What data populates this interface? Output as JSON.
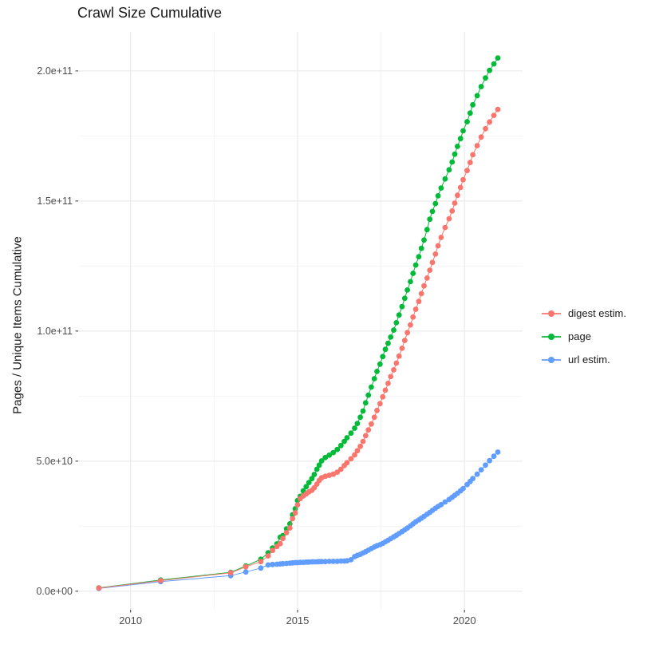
{
  "title": "Crawl Size Cumulative",
  "ylabel": "Pages / Unique Items Cumulative",
  "theme": {
    "background": "#FFFFFF",
    "grid_major": "#EBEBEB",
    "grid_minor": "#F4F4F4",
    "tick": "#333333",
    "tick_label": "#4D4D4D",
    "text": "#1A1A1A"
  },
  "chart_data": {
    "type": "scatter",
    "title": "Crawl Size Cumulative",
    "xlabel": "",
    "ylabel": "Pages / Unique Items Cumulative",
    "grid": true,
    "legend_position": "right",
    "xlim": [
      2008.43,
      2021.74
    ],
    "ylim_e9": [
      -7.1,
      215.0
    ],
    "unit_note": "values_e9 are in units of 1e9 (y axis shows scientific notation)",
    "x_axis": {
      "major_ticks": [
        {
          "value": 2010,
          "label": "2010"
        },
        {
          "value": 2015,
          "label": "2015"
        },
        {
          "value": 2020,
          "label": "2020"
        }
      ],
      "minor_gridlines": [
        2012.5,
        2017.5
      ]
    },
    "y_axis": {
      "major_ticks": [
        {
          "value_e9": 0,
          "label": "0.0e+00"
        },
        {
          "value_e9": 50,
          "label": "5.0e+10"
        },
        {
          "value_e9": 100,
          "label": "1.0e+11"
        },
        {
          "value_e9": 150,
          "label": "1.5e+11"
        },
        {
          "value_e9": 200,
          "label": "2.0e+11"
        }
      ],
      "minor_gridlines_e9": [
        25,
        75,
        125,
        175
      ]
    },
    "x_years": [
      2009.05,
      2010.9,
      2013.0,
      2013.45,
      2013.9,
      2014.12,
      2014.25,
      2014.38,
      2014.48,
      2014.56,
      2014.67,
      2014.77,
      2014.85,
      2014.93,
      2015.0,
      2015.08,
      2015.17,
      2015.26,
      2015.34,
      2015.43,
      2015.5,
      2015.58,
      2015.65,
      2015.72,
      2015.83,
      2015.95,
      2016.07,
      2016.19,
      2016.3,
      2016.4,
      2016.48,
      2016.6,
      2016.71,
      2016.79,
      2016.88,
      2016.96,
      2017.04,
      2017.12,
      2017.21,
      2017.3,
      2017.38,
      2017.47,
      2017.55,
      2017.63,
      2017.71,
      2017.79,
      2017.88,
      2017.96,
      2018.04,
      2018.13,
      2018.21,
      2018.29,
      2018.38,
      2018.46,
      2018.54,
      2018.63,
      2018.71,
      2018.79,
      2018.88,
      2018.96,
      2019.04,
      2019.13,
      2019.21,
      2019.3,
      2019.42,
      2019.54,
      2019.63,
      2019.71,
      2019.79,
      2019.88,
      2019.96,
      2020.08,
      2020.17,
      2020.25,
      2020.38,
      2020.5,
      2020.63,
      2020.75,
      2020.88,
      2021.0
    ],
    "series": [
      {
        "name": "digest estim.",
        "color": "#F8766D",
        "values_e9": [
          1.2,
          4.1,
          7.1,
          9.4,
          11.4,
          13.6,
          15.7,
          17.2,
          18.3,
          20.3,
          22.5,
          24.3,
          27.9,
          30.1,
          33.2,
          35.6,
          36.6,
          37.4,
          38.2,
          38.8,
          39.8,
          41.2,
          42.6,
          43.6,
          44.2,
          44.6,
          45.0,
          45.8,
          46.9,
          48.3,
          49.4,
          50.9,
          52.4,
          54.0,
          55.7,
          57.6,
          59.8,
          62.0,
          64.3,
          66.9,
          69.5,
          72.1,
          74.7,
          77.3,
          79.9,
          82.5,
          85.1,
          87.7,
          90.4,
          93.4,
          96.4,
          99.4,
          102.4,
          105.4,
          108.4,
          111.4,
          114.4,
          117.4,
          120.4,
          123.4,
          126.4,
          129.6,
          132.8,
          136.0,
          139.8,
          143.2,
          146.2,
          149.2,
          152.2,
          155.2,
          158.2,
          161.7,
          164.8,
          167.8,
          171.3,
          174.6,
          177.8,
          180.4,
          182.9,
          185.2
        ]
      },
      {
        "name": "page",
        "color": "#00BA38",
        "values_e9": [
          1.3,
          4.3,
          7.3,
          9.7,
          12.3,
          14.8,
          16.6,
          18.2,
          20.8,
          21.4,
          24.0,
          25.9,
          29.4,
          31.7,
          34.9,
          36.5,
          38.6,
          40.2,
          41.8,
          43.3,
          44.9,
          46.9,
          48.5,
          50.1,
          51.4,
          52.3,
          53.3,
          54.5,
          56.0,
          57.6,
          59.0,
          60.8,
          62.7,
          64.5,
          66.9,
          69.3,
          72.4,
          75.4,
          78.5,
          81.7,
          84.5,
          87.3,
          90.2,
          93.0,
          95.3,
          97.7,
          100.4,
          103.2,
          106.2,
          109.4,
          112.6,
          115.8,
          119.0,
          122.2,
          125.4,
          128.6,
          131.8,
          135.0,
          139.0,
          143.0,
          146.0,
          149.0,
          152.0,
          155.0,
          158.5,
          162.0,
          165.0,
          168.0,
          171.0,
          174.0,
          177.0,
          180.5,
          183.8,
          187.0,
          190.5,
          194.0,
          197.3,
          200.2,
          202.7,
          205.0
        ]
      },
      {
        "name": "url estim.",
        "color": "#619CFF",
        "values_e9": [
          1.1,
          3.7,
          6.0,
          7.4,
          8.9,
          10.1,
          10.3,
          10.4,
          10.5,
          10.6,
          10.7,
          10.8,
          10.9,
          11.0,
          11.0,
          11.1,
          11.1,
          11.2,
          11.2,
          11.3,
          11.3,
          11.3,
          11.4,
          11.4,
          11.4,
          11.5,
          11.5,
          11.5,
          11.6,
          11.6,
          11.7,
          12.1,
          13.3,
          13.8,
          14.2,
          14.7,
          15.2,
          15.8,
          16.4,
          17.0,
          17.5,
          17.9,
          18.4,
          19.0,
          19.6,
          20.2,
          20.9,
          21.5,
          22.2,
          22.9,
          23.6,
          24.3,
          25.1,
          25.9,
          26.7,
          27.4,
          28.1,
          28.8,
          29.6,
          30.3,
          31.1,
          31.9,
          32.6,
          33.3,
          34.3,
          35.3,
          36.1,
          36.9,
          37.7,
          38.6,
          39.5,
          41.0,
          42.2,
          43.3,
          45.0,
          46.7,
          48.5,
          50.2,
          51.9,
          53.5
        ]
      }
    ]
  }
}
